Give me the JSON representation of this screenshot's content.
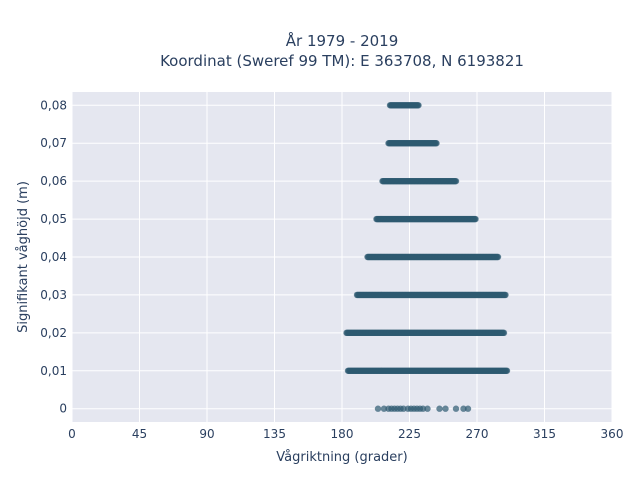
{
  "chart_data": {
    "type": "scatter",
    "title_line1": "År 1979 - 2019",
    "title_line2": "Koordinat (Sweref 99 TM): E 363708, N 6193821",
    "xlabel": "Vågriktning (grader)",
    "ylabel": "Signifikant våghöjd (m)",
    "xlim": [
      0,
      360
    ],
    "ylim": [
      -0.0035,
      0.0835
    ],
    "x_ticks": [
      {
        "value": 0,
        "label": "0"
      },
      {
        "value": 45,
        "label": "45"
      },
      {
        "value": 90,
        "label": "90"
      },
      {
        "value": 135,
        "label": "135"
      },
      {
        "value": 180,
        "label": "180"
      },
      {
        "value": 225,
        "label": "225"
      },
      {
        "value": 270,
        "label": "270"
      },
      {
        "value": 315,
        "label": "315"
      },
      {
        "value": 360,
        "label": "360"
      }
    ],
    "y_ticks": [
      {
        "value": 0,
        "label": "0"
      },
      {
        "value": 0.01,
        "label": "0,01"
      },
      {
        "value": 0.02,
        "label": "0,02"
      },
      {
        "value": 0.03,
        "label": "0,03"
      },
      {
        "value": 0.04,
        "label": "0,04"
      },
      {
        "value": 0.05,
        "label": "0,05"
      },
      {
        "value": 0.06,
        "label": "0,06"
      },
      {
        "value": 0.07,
        "label": "0,07"
      },
      {
        "value": 0.08,
        "label": "0,08"
      }
    ],
    "grid": true,
    "marker_color": "#2e5a70",
    "plot_bg_color": "#e5e7f0",
    "bands": [
      {
        "y": 0.01,
        "x_min": 184,
        "x_max": 290
      },
      {
        "y": 0.02,
        "x_min": 183,
        "x_max": 288
      },
      {
        "y": 0.03,
        "x_min": 190,
        "x_max": 289
      },
      {
        "y": 0.04,
        "x_min": 197,
        "x_max": 284
      },
      {
        "y": 0.05,
        "x_min": 203,
        "x_max": 269
      },
      {
        "y": 0.06,
        "x_min": 207,
        "x_max": 256
      },
      {
        "y": 0.07,
        "x_min": 211,
        "x_max": 243
      },
      {
        "y": 0.08,
        "x_min": 212,
        "x_max": 231
      }
    ],
    "sparse_points": [
      {
        "x": 204,
        "y": 0
      },
      {
        "x": 208,
        "y": 0
      },
      {
        "x": 211,
        "y": 0
      },
      {
        "x": 213,
        "y": 0
      },
      {
        "x": 215,
        "y": 0
      },
      {
        "x": 217,
        "y": 0
      },
      {
        "x": 219,
        "y": 0
      },
      {
        "x": 221,
        "y": 0
      },
      {
        "x": 224,
        "y": 0
      },
      {
        "x": 226,
        "y": 0
      },
      {
        "x": 228,
        "y": 0
      },
      {
        "x": 230,
        "y": 0
      },
      {
        "x": 232,
        "y": 0
      },
      {
        "x": 234,
        "y": 0
      },
      {
        "x": 237,
        "y": 0
      },
      {
        "x": 245,
        "y": 0
      },
      {
        "x": 249,
        "y": 0
      },
      {
        "x": 256,
        "y": 0
      },
      {
        "x": 261,
        "y": 0
      },
      {
        "x": 264,
        "y": 0
      }
    ]
  }
}
